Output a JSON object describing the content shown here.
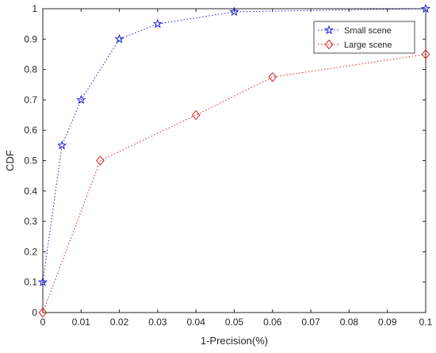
{
  "chart_data": {
    "type": "line",
    "title": "",
    "xlabel": "1-Precision(%)",
    "ylabel": "CDF",
    "xlim": [
      0,
      0.1
    ],
    "ylim": [
      0,
      1
    ],
    "x_ticks": [
      "0",
      "0.01",
      "0.02",
      "0.03",
      "0.04",
      "0.05",
      "0.06",
      "0.07",
      "0.08",
      "0.09",
      "0.1"
    ],
    "x_tick_values": [
      0,
      0.01,
      0.02,
      0.03,
      0.04,
      0.05,
      0.06,
      0.07,
      0.08,
      0.09,
      0.1
    ],
    "y_ticks": [
      "0",
      "0.1",
      "0.2",
      "0.3",
      "0.4",
      "0.5",
      "0.6",
      "0.7",
      "0.8",
      "0.9",
      "1"
    ],
    "y_tick_values": [
      0,
      0.1,
      0.2,
      0.3,
      0.4,
      0.5,
      0.6,
      0.7,
      0.8,
      0.9,
      1
    ],
    "grid": false,
    "legend_position": "top-right",
    "series": [
      {
        "name": "Small scene",
        "color": "#1f1fd6",
        "marker": "star",
        "line_style": "dotted",
        "x": [
          0,
          0.005,
          0.01,
          0.02,
          0.03,
          0.05,
          0.1
        ],
        "y": [
          0.1,
          0.55,
          0.7,
          0.9,
          0.95,
          0.99,
          1.0
        ]
      },
      {
        "name": "Large scene",
        "color": "#e02020",
        "marker": "diamond",
        "line_style": "dotted",
        "x": [
          0,
          0.015,
          0.04,
          0.06,
          0.1
        ],
        "y": [
          0,
          0.5,
          0.65,
          0.775,
          0.85
        ]
      }
    ]
  }
}
